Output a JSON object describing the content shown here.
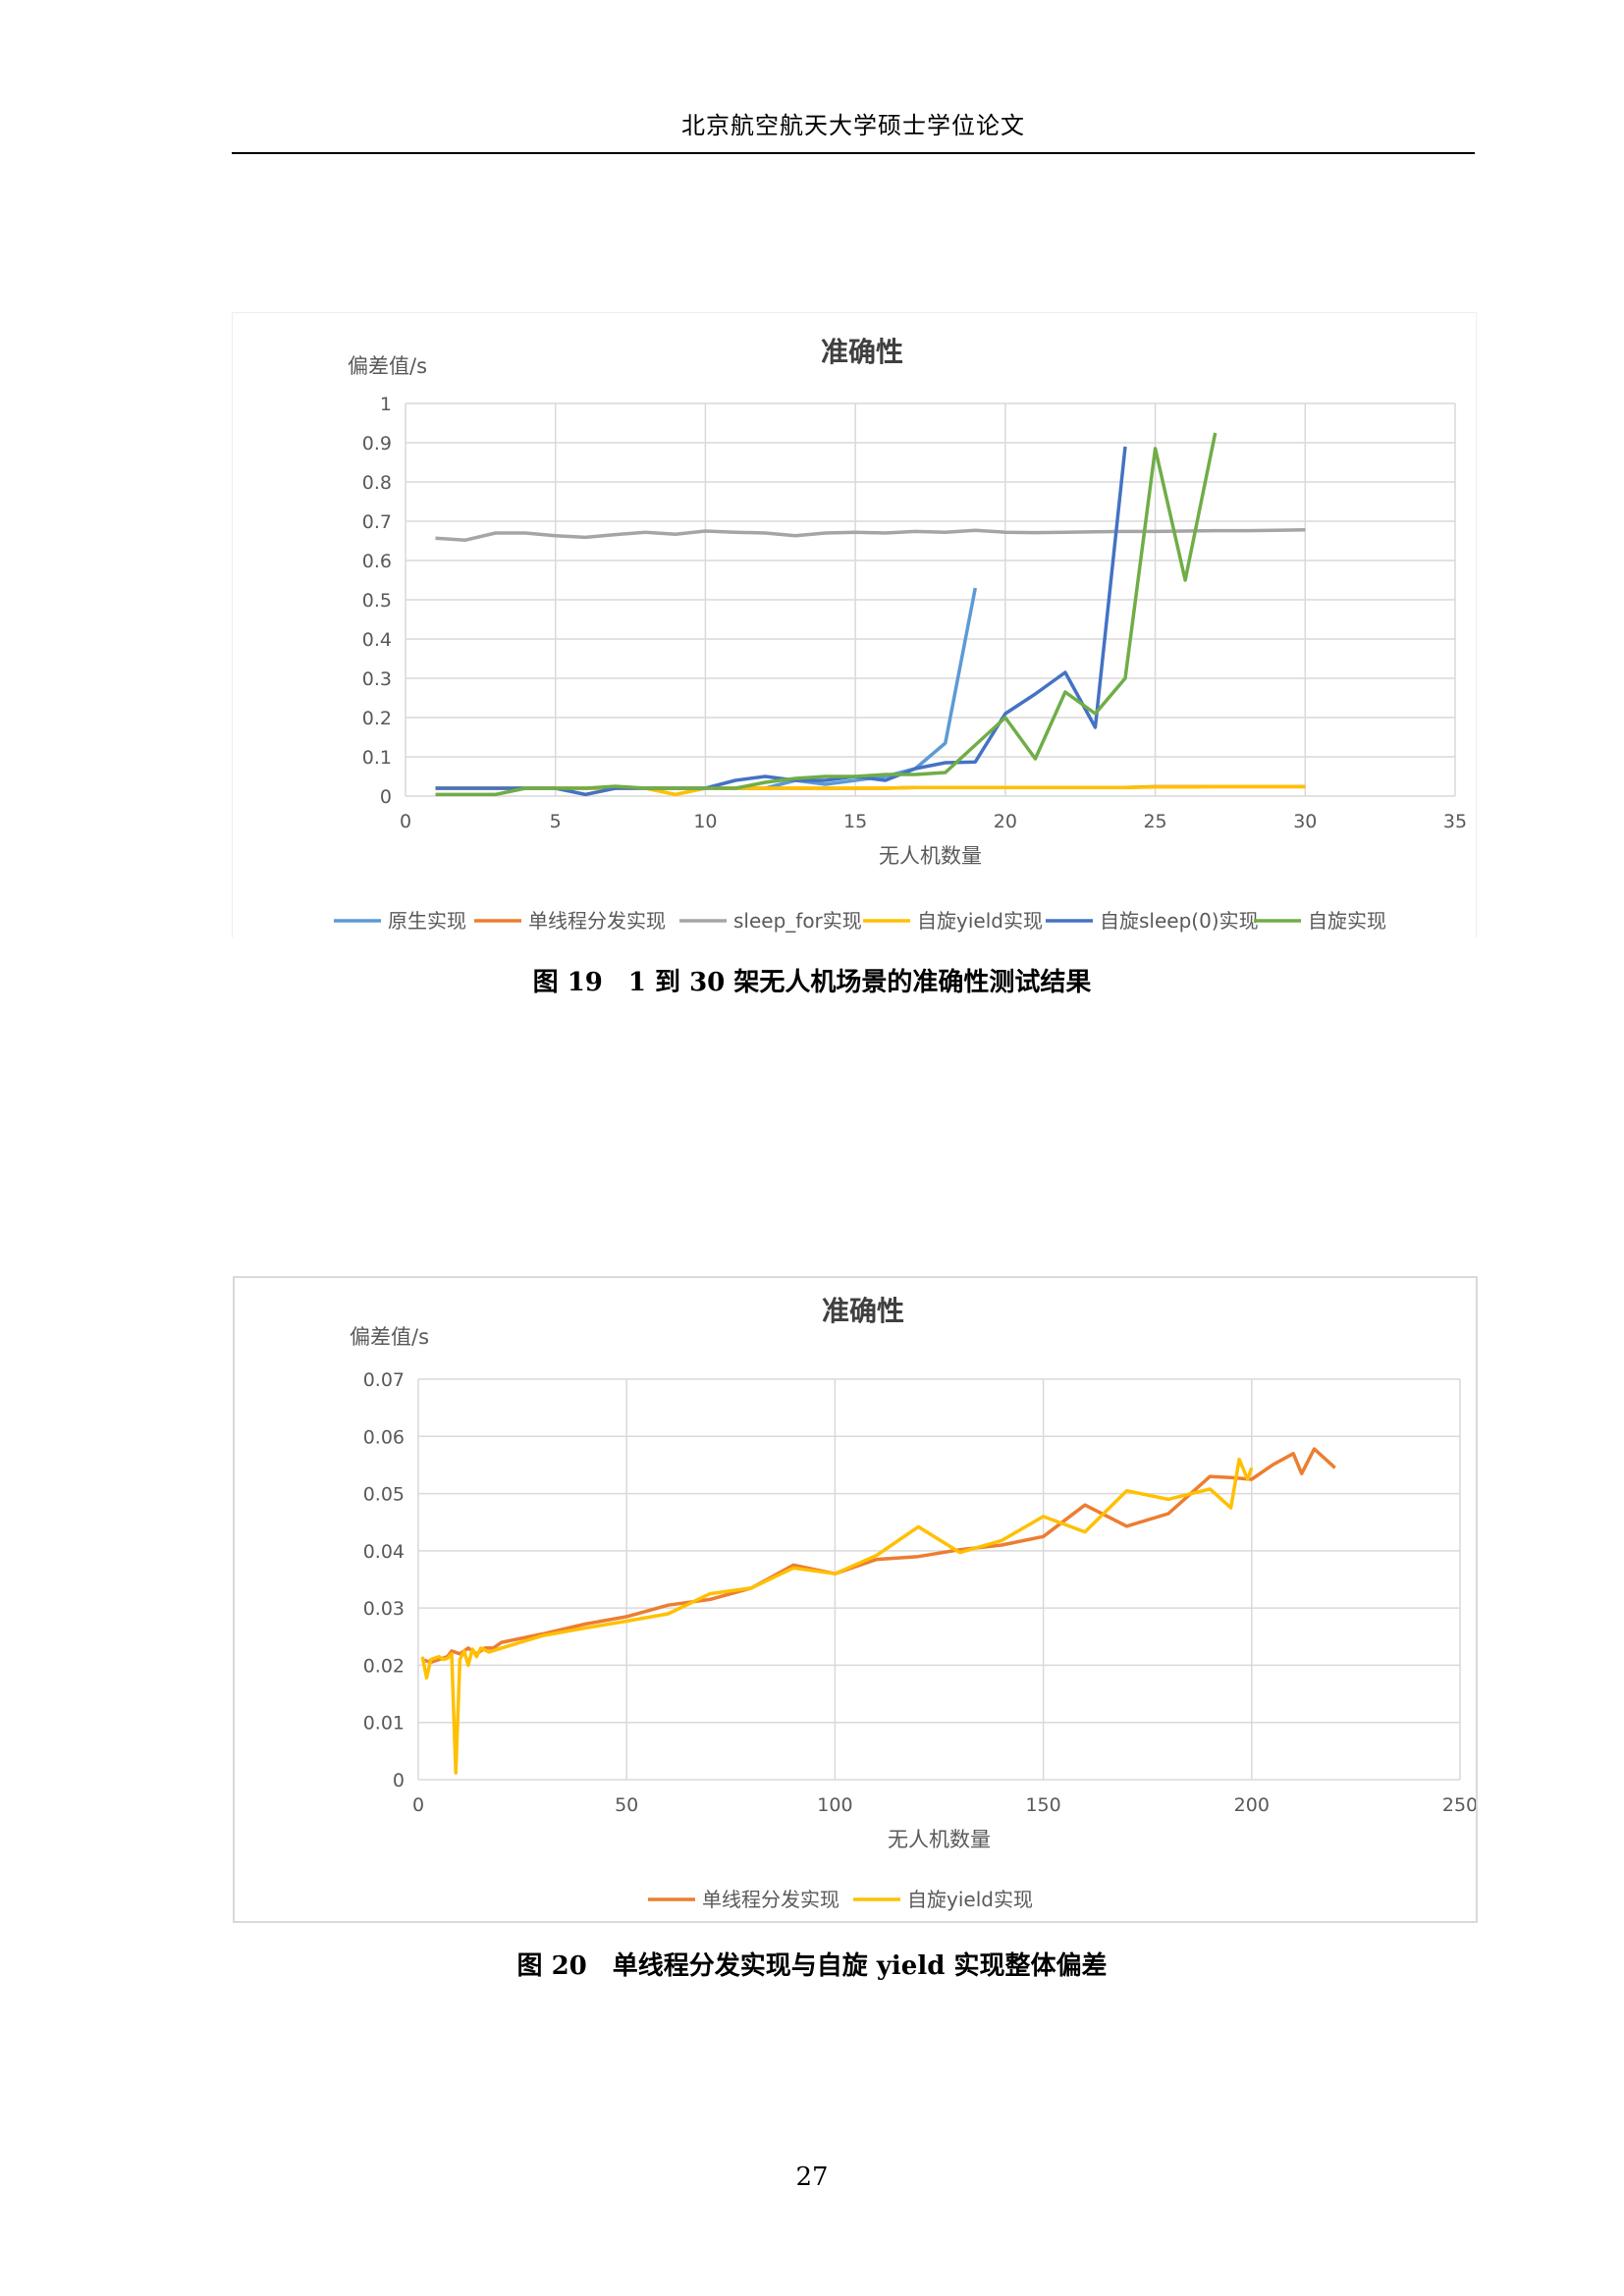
{
  "header": {
    "title": "北京航空航天大学硕士学位论文"
  },
  "page_number": "27",
  "figures": [
    {
      "caption": "图 19　1 到 30 架无人机场景的准确性测试结果"
    },
    {
      "caption": "图 20　单线程分发实现与自旋 yield 实现整体偏差"
    }
  ],
  "chart_data": [
    {
      "type": "line",
      "title": "准确性",
      "ylabel": "偏差值/s",
      "xlabel": "无人机数量",
      "xlim": [
        0,
        35
      ],
      "ylim": [
        0,
        1
      ],
      "xticks": [
        "0",
        "5",
        "10",
        "15",
        "20",
        "25",
        "30",
        "35"
      ],
      "yticks": [
        "0",
        "0.1",
        "0.2",
        "0.3",
        "0.4",
        "0.5",
        "0.6",
        "0.7",
        "0.8",
        "0.9",
        "1"
      ],
      "grid": true,
      "legend_position": "bottom",
      "series": [
        {
          "name": "原生实现",
          "color": "#5b9bd5",
          "points": [
            [
              1,
              0.02
            ],
            [
              2,
              0.02
            ],
            [
              3,
              0.02
            ],
            [
              4,
              0.02
            ],
            [
              5,
              0.02
            ],
            [
              6,
              0.02
            ],
            [
              7,
              0.02
            ],
            [
              8,
              0.02
            ],
            [
              9,
              0.02
            ],
            [
              10,
              0.02
            ],
            [
              11,
              0.02
            ],
            [
              12,
              0.02
            ],
            [
              13,
              0.04
            ],
            [
              14,
              0.03
            ],
            [
              15,
              0.04
            ],
            [
              16,
              0.05
            ],
            [
              17,
              0.07
            ],
            [
              18,
              0.135
            ],
            [
              19,
              0.53
            ]
          ]
        },
        {
          "name": "单线程分发实现",
          "color": "#ed7d31",
          "points": [
            [
              1,
              0.02
            ],
            [
              2,
              0.02
            ],
            [
              3,
              0.02
            ],
            [
              4,
              0.02
            ],
            [
              5,
              0.02
            ],
            [
              6,
              0.02
            ],
            [
              7,
              0.02
            ],
            [
              8,
              0.02
            ],
            [
              9,
              0.02
            ],
            [
              10,
              0.02
            ],
            [
              11,
              0.02
            ],
            [
              12,
              0.02
            ],
            [
              13,
              0.02
            ],
            [
              14,
              0.02
            ],
            [
              15,
              0.02
            ],
            [
              16,
              0.02
            ],
            [
              17,
              0.022
            ],
            [
              18,
              0.022
            ],
            [
              19,
              0.022
            ],
            [
              20,
              0.022
            ],
            [
              21,
              0.022
            ],
            [
              22,
              0.022
            ],
            [
              23,
              0.022
            ],
            [
              24,
              0.022
            ],
            [
              25,
              0.024
            ],
            [
              26,
              0.024
            ],
            [
              27,
              0.024
            ],
            [
              28,
              0.024
            ],
            [
              29,
              0.024
            ],
            [
              30,
              0.024
            ]
          ]
        },
        {
          "name": "sleep_for实现",
          "color": "#a5a5a5",
          "points": [
            [
              1,
              0.657
            ],
            [
              2,
              0.652
            ],
            [
              3,
              0.67
            ],
            [
              4,
              0.67
            ],
            [
              5,
              0.663
            ],
            [
              6,
              0.659
            ],
            [
              7,
              0.666
            ],
            [
              8,
              0.672
            ],
            [
              9,
              0.667
            ],
            [
              10,
              0.675
            ],
            [
              11,
              0.672
            ],
            [
              12,
              0.67
            ],
            [
              13,
              0.663
            ],
            [
              14,
              0.67
            ],
            [
              15,
              0.672
            ],
            [
              16,
              0.67
            ],
            [
              17,
              0.674
            ],
            [
              18,
              0.672
            ],
            [
              19,
              0.677
            ],
            [
              20,
              0.672
            ],
            [
              21,
              0.671
            ],
            [
              22,
              0.672
            ],
            [
              23,
              0.673
            ],
            [
              24,
              0.674
            ],
            [
              25,
              0.674
            ],
            [
              26,
              0.675
            ],
            [
              27,
              0.676
            ],
            [
              28,
              0.676
            ],
            [
              29,
              0.677
            ],
            [
              30,
              0.678
            ]
          ]
        },
        {
          "name": "自旋yield实现",
          "color": "#ffc000",
          "points": [
            [
              1,
              0.02
            ],
            [
              2,
              0.02
            ],
            [
              3,
              0.02
            ],
            [
              4,
              0.02
            ],
            [
              5,
              0.02
            ],
            [
              6,
              0.02
            ],
            [
              7,
              0.02
            ],
            [
              8,
              0.02
            ],
            [
              9,
              0.004
            ],
            [
              10,
              0.02
            ],
            [
              11,
              0.02
            ],
            [
              12,
              0.02
            ],
            [
              13,
              0.02
            ],
            [
              14,
              0.02
            ],
            [
              15,
              0.02
            ],
            [
              16,
              0.02
            ],
            [
              17,
              0.022
            ],
            [
              18,
              0.022
            ],
            [
              19,
              0.022
            ],
            [
              20,
              0.022
            ],
            [
              21,
              0.022
            ],
            [
              22,
              0.022
            ],
            [
              23,
              0.022
            ],
            [
              24,
              0.022
            ],
            [
              25,
              0.023
            ],
            [
              26,
              0.023
            ],
            [
              27,
              0.024
            ],
            [
              28,
              0.024
            ],
            [
              29,
              0.024
            ],
            [
              30,
              0.024
            ]
          ]
        },
        {
          "name": "自旋sleep(0)实现",
          "color": "#4472c4",
          "points": [
            [
              1,
              0.02
            ],
            [
              2,
              0.02
            ],
            [
              3,
              0.02
            ],
            [
              4,
              0.02
            ],
            [
              5,
              0.02
            ],
            [
              6,
              0.004
            ],
            [
              7,
              0.02
            ],
            [
              8,
              0.02
            ],
            [
              9,
              0.02
            ],
            [
              10,
              0.02
            ],
            [
              11,
              0.04
            ],
            [
              12,
              0.05
            ],
            [
              13,
              0.04
            ],
            [
              14,
              0.04
            ],
            [
              15,
              0.05
            ],
            [
              16,
              0.04
            ],
            [
              17,
              0.07
            ],
            [
              18,
              0.085
            ],
            [
              19,
              0.087
            ],
            [
              20,
              0.21
            ],
            [
              21,
              0.26
            ],
            [
              22,
              0.315
            ],
            [
              23,
              0.175
            ],
            [
              24,
              0.89
            ]
          ]
        },
        {
          "name": "自旋实现",
          "color": "#70ad47",
          "points": [
            [
              1,
              0.004
            ],
            [
              2,
              0.004
            ],
            [
              3,
              0.004
            ],
            [
              4,
              0.02
            ],
            [
              5,
              0.02
            ],
            [
              6,
              0.02
            ],
            [
              7,
              0.025
            ],
            [
              8,
              0.02
            ],
            [
              9,
              0.02
            ],
            [
              10,
              0.02
            ],
            [
              11,
              0.02
            ],
            [
              12,
              0.035
            ],
            [
              13,
              0.045
            ],
            [
              14,
              0.05
            ],
            [
              15,
              0.05
            ],
            [
              16,
              0.055
            ],
            [
              17,
              0.055
            ],
            [
              18,
              0.06
            ],
            [
              19,
              0.13
            ],
            [
              20,
              0.2
            ],
            [
              21,
              0.095
            ],
            [
              22,
              0.265
            ],
            [
              23,
              0.21
            ],
            [
              24,
              0.3
            ],
            [
              25,
              0.885
            ],
            [
              26,
              0.55
            ],
            [
              27,
              0.925
            ]
          ]
        }
      ]
    },
    {
      "type": "line",
      "title": "准确性",
      "ylabel": "偏差值/s",
      "xlabel": "无人机数量",
      "xlim": [
        0,
        250
      ],
      "ylim": [
        0,
        0.07
      ],
      "xticks": [
        "0",
        "50",
        "100",
        "150",
        "200",
        "250"
      ],
      "yticks": [
        "0",
        "0.01",
        "0.02",
        "0.03",
        "0.04",
        "0.05",
        "0.06",
        "0.07"
      ],
      "grid": true,
      "legend_position": "bottom",
      "series": [
        {
          "name": "单线程分发实现",
          "color": "#ed7d31",
          "points": [
            [
              1,
              0.021
            ],
            [
              3,
              0.0205
            ],
            [
              5,
              0.021
            ],
            [
              7,
              0.0215
            ],
            [
              8,
              0.0225
            ],
            [
              10,
              0.022
            ],
            [
              12,
              0.023
            ],
            [
              14,
              0.022
            ],
            [
              16,
              0.023
            ],
            [
              18,
              0.023
            ],
            [
              20,
              0.024
            ],
            [
              30,
              0.0255
            ],
            [
              40,
              0.0272
            ],
            [
              50,
              0.0285
            ],
            [
              60,
              0.0305
            ],
            [
              70,
              0.0315
            ],
            [
              80,
              0.0335
            ],
            [
              90,
              0.0375
            ],
            [
              100,
              0.036
            ],
            [
              110,
              0.0385
            ],
            [
              120,
              0.039
            ],
            [
              130,
              0.0402
            ],
            [
              140,
              0.041
            ],
            [
              150,
              0.0425
            ],
            [
              160,
              0.048
            ],
            [
              170,
              0.0443
            ],
            [
              180,
              0.0465
            ],
            [
              190,
              0.053
            ],
            [
              195,
              0.0528
            ],
            [
              200,
              0.0525
            ],
            [
              205,
              0.055
            ],
            [
              210,
              0.057
            ],
            [
              212,
              0.0535
            ],
            [
              215,
              0.0578
            ],
            [
              220,
              0.0545
            ]
          ]
        },
        {
          "name": "自旋yield实现",
          "color": "#ffc000",
          "points": [
            [
              1,
              0.0215
            ],
            [
              2,
              0.0178
            ],
            [
              3,
              0.021
            ],
            [
              5,
              0.0215
            ],
            [
              6,
              0.021
            ],
            [
              7,
              0.0212
            ],
            [
              8,
              0.022
            ],
            [
              9,
              0.0012
            ],
            [
              10,
              0.021
            ],
            [
              11,
              0.0225
            ],
            [
              12,
              0.02
            ],
            [
              13,
              0.0228
            ],
            [
              14,
              0.0215
            ],
            [
              15,
              0.023
            ],
            [
              17,
              0.0223
            ],
            [
              20,
              0.023
            ],
            [
              30,
              0.0252
            ],
            [
              40,
              0.0265
            ],
            [
              50,
              0.0277
            ],
            [
              60,
              0.029
            ],
            [
              70,
              0.0325
            ],
            [
              80,
              0.0335
            ],
            [
              90,
              0.037
            ],
            [
              100,
              0.036
            ],
            [
              110,
              0.0392
            ],
            [
              120,
              0.0442
            ],
            [
              130,
              0.0397
            ],
            [
              140,
              0.0418
            ],
            [
              150,
              0.046
            ],
            [
              160,
              0.0433
            ],
            [
              170,
              0.0505
            ],
            [
              180,
              0.049
            ],
            [
              190,
              0.0508
            ],
            [
              195,
              0.0475
            ],
            [
              197,
              0.056
            ],
            [
              199,
              0.0525
            ],
            [
              200,
              0.0545
            ]
          ]
        }
      ]
    }
  ]
}
